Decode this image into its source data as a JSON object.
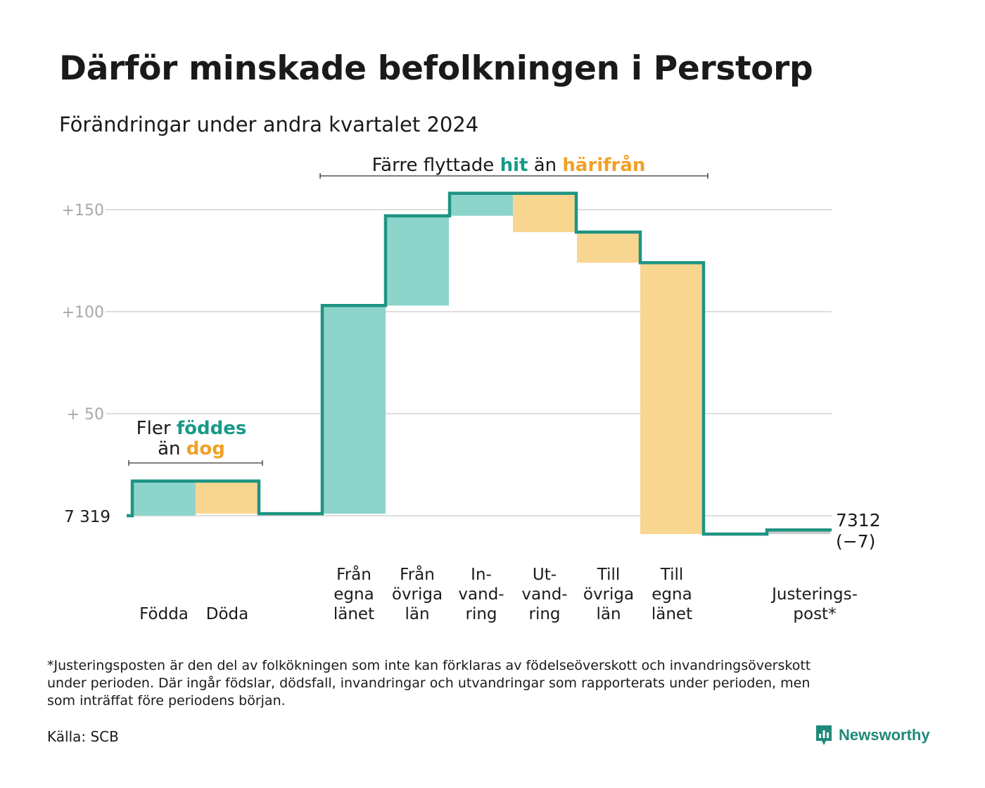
{
  "title": "Därför minskade befolkningen i Perstorp",
  "subtitle": "Förändringar under andra kvartalet 2024",
  "colors": {
    "inflow": "#8dd4cb",
    "outflow": "#f9d68f",
    "line": "#1f9483",
    "adjustment": "#c8c8c8",
    "grid": "#dddddd",
    "accent_green": "#179a88",
    "accent_orange": "#f2a024"
  },
  "annotations": {
    "births": {
      "pre": "Fler",
      "green": "föddes",
      "mid": "än",
      "orange": "dog"
    },
    "migration": {
      "pre": "Färre flyttade",
      "green": "hit",
      "mid": "än",
      "orange": "härifrån"
    }
  },
  "chart_data": {
    "type": "waterfall",
    "start_value": 7319,
    "start_label": "7  319",
    "end_value": 7312,
    "end_label": "7 312",
    "end_change_label": "(−7)",
    "ylim": [
      -10,
      160
    ],
    "y_ticks": [
      {
        "value": 150,
        "label": "+150"
      },
      {
        "value": 100,
        "label": "+100"
      },
      {
        "value": 50,
        "label": "+  50"
      }
    ],
    "grid": true,
    "categories": [
      {
        "label": "Födda",
        "value": 17
      },
      {
        "label": "Döda",
        "value": -16
      },
      {
        "label": "Från\negna\nlänet",
        "value": 102
      },
      {
        "label": "Från\növriga\nlän",
        "value": 44
      },
      {
        "label": "In-\nvand-\nring",
        "value": 11
      },
      {
        "label": "Ut-\nvand-\nring",
        "value": -19
      },
      {
        "label": "Till\növriga\nlän",
        "value": -15
      },
      {
        "label": "Till\negna\nlänet",
        "value": -133
      },
      {
        "label": "Justerings-\npost*",
        "value": 2
      }
    ]
  },
  "footnote": "*Justeringsposten är den del av folkökningen som inte kan förklaras av födelseöverskott och invandringsöverskott\nunder perioden. Där ingår födslar, dödsfall, invandringar och utvandringar som rapporterats under perioden, men\nsom inträffat före periodens början.",
  "source": "Källa: SCB",
  "brand": "Newsworthy"
}
